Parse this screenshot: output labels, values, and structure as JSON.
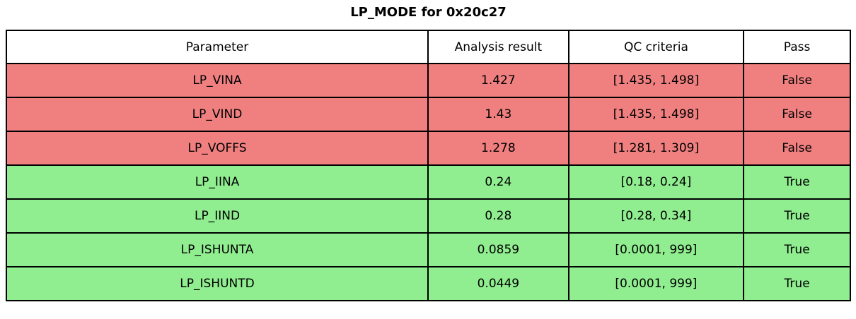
{
  "title": "LP_MODE for 0x20c27",
  "colors": {
    "fail_bg": "#f08080",
    "pass_bg": "#90ee90",
    "header_bg": "#ffffff",
    "border": "#000000",
    "text": "#000000"
  },
  "table": {
    "columns": [
      "Parameter",
      "Analysis result",
      "QC criteria",
      "Pass"
    ],
    "rows": [
      {
        "parameter": "LP_VINA",
        "result": "1.427",
        "criteria": "[1.435, 1.498]",
        "pass": "False",
        "status": "fail"
      },
      {
        "parameter": "LP_VIND",
        "result": "1.43",
        "criteria": "[1.435, 1.498]",
        "pass": "False",
        "status": "fail"
      },
      {
        "parameter": "LP_VOFFS",
        "result": "1.278",
        "criteria": "[1.281, 1.309]",
        "pass": "False",
        "status": "fail"
      },
      {
        "parameter": "LP_IINA",
        "result": "0.24",
        "criteria": "[0.18, 0.24]",
        "pass": "True",
        "status": "pass"
      },
      {
        "parameter": "LP_IIND",
        "result": "0.28",
        "criteria": "[0.28, 0.34]",
        "pass": "True",
        "status": "pass"
      },
      {
        "parameter": "LP_ISHUNTA",
        "result": "0.0859",
        "criteria": "[0.0001, 999]",
        "pass": "True",
        "status": "pass"
      },
      {
        "parameter": "LP_ISHUNTD",
        "result": "0.0449",
        "criteria": "[0.0001, 999]",
        "pass": "True",
        "status": "pass"
      }
    ]
  },
  "chart_data": {
    "type": "table",
    "title": "LP_MODE for 0x20c27",
    "columns": [
      "Parameter",
      "Analysis result",
      "QC criteria",
      "Pass"
    ],
    "rows": [
      [
        "LP_VINA",
        1.427,
        "[1.435, 1.498]",
        "False"
      ],
      [
        "LP_VIND",
        1.43,
        "[1.435, 1.498]",
        "False"
      ],
      [
        "LP_VOFFS",
        1.278,
        "[1.281, 1.309]",
        "False"
      ],
      [
        "LP_IINA",
        0.24,
        "[0.18, 0.24]",
        "True"
      ],
      [
        "LP_IIND",
        0.28,
        "[0.28, 0.34]",
        "True"
      ],
      [
        "LP_ISHUNTA",
        0.0859,
        "[0.0001, 999]",
        "True"
      ],
      [
        "LP_ISHUNTD",
        0.0449,
        "[0.0001, 999]",
        "True"
      ]
    ],
    "row_status": [
      "fail",
      "fail",
      "fail",
      "pass",
      "pass",
      "pass",
      "pass"
    ],
    "fail_color": "#f08080",
    "pass_color": "#90ee90",
    "header_bg": "#ffffff",
    "border_color": "#000000"
  }
}
